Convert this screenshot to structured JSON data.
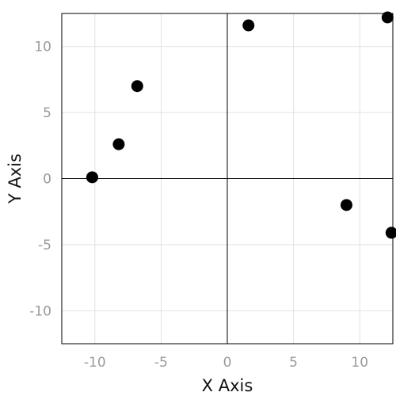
{
  "chart_data": {
    "type": "scatter",
    "title": "",
    "xlabel": "X Axis",
    "ylabel": "Y Axis",
    "xlim": [
      -12.5,
      12.5
    ],
    "ylim": [
      -12.5,
      12.5
    ],
    "x_ticks": [
      -10,
      -5,
      0,
      5,
      10
    ],
    "y_ticks": [
      -10,
      -5,
      0,
      5,
      10
    ],
    "x_tick_labels": [
      "-10",
      "-5",
      "0",
      "5",
      "10"
    ],
    "y_tick_labels": [
      "-10",
      "-5",
      "0",
      "5",
      "10"
    ],
    "grid": true,
    "zero_lines": true,
    "marker_color": "#000000",
    "points": [
      {
        "x": -10.2,
        "y": 0.1
      },
      {
        "x": -8.2,
        "y": 2.6
      },
      {
        "x": -6.8,
        "y": 7.0
      },
      {
        "x": 1.6,
        "y": 11.6
      },
      {
        "x": 12.1,
        "y": 12.2
      },
      {
        "x": 9.0,
        "y": -2.0
      },
      {
        "x": 12.4,
        "y": -4.1
      }
    ]
  }
}
